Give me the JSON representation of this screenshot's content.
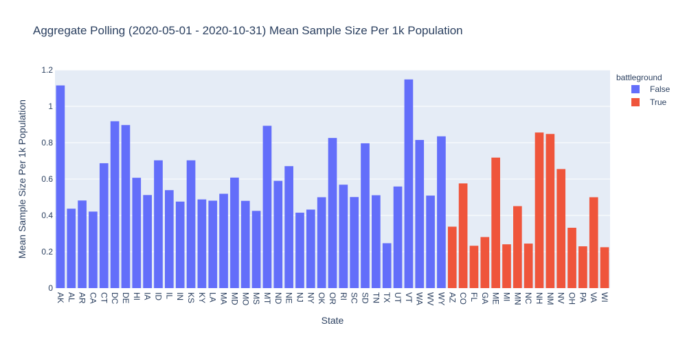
{
  "chart_data": {
    "type": "bar",
    "title": "Aggregate Polling (2020-05-01 - 2020-10-31) Mean Sample Size Per 1k Population",
    "xlabel": "State",
    "ylabel": "Mean Sample Size Per 1k Population",
    "ylim": [
      0,
      1.2
    ],
    "yticks": [
      0,
      0.2,
      0.4,
      0.6,
      0.8,
      1,
      1.2
    ],
    "grid": true,
    "legend": {
      "title": "battleground",
      "placement": "top-right"
    },
    "series": [
      {
        "name": "False",
        "color": "#636efa",
        "categories": [
          "AK",
          "AL",
          "AR",
          "CA",
          "CT",
          "DC",
          "DE",
          "HI",
          "IA",
          "ID",
          "IL",
          "IN",
          "KS",
          "KY",
          "LA",
          "MA",
          "MD",
          "MO",
          "MS",
          "MT",
          "ND",
          "NE",
          "NJ",
          "NY",
          "OK",
          "OR",
          "RI",
          "SC",
          "SD",
          "TN",
          "TX",
          "UT",
          "VT",
          "WA",
          "WV",
          "WY"
        ],
        "values": [
          1.115,
          0.437,
          0.482,
          0.421,
          0.687,
          0.918,
          0.897,
          0.607,
          0.512,
          0.703,
          0.539,
          0.476,
          0.703,
          0.488,
          0.481,
          0.519,
          0.608,
          0.48,
          0.425,
          0.893,
          0.59,
          0.671,
          0.415,
          0.432,
          0.5,
          0.826,
          0.569,
          0.501,
          0.797,
          0.511,
          0.247,
          0.559,
          1.148,
          0.815,
          0.509,
          0.835
        ]
      },
      {
        "name": "True",
        "color": "#ef553b",
        "categories": [
          "AZ",
          "CO",
          "FL",
          "GA",
          "ME",
          "MI",
          "MN",
          "NC",
          "NH",
          "NM",
          "NV",
          "OH",
          "PA",
          "VA",
          "WI"
        ],
        "values": [
          0.338,
          0.576,
          0.233,
          0.281,
          0.718,
          0.241,
          0.451,
          0.245,
          0.856,
          0.848,
          0.655,
          0.332,
          0.23,
          0.5,
          0.225
        ]
      }
    ]
  }
}
